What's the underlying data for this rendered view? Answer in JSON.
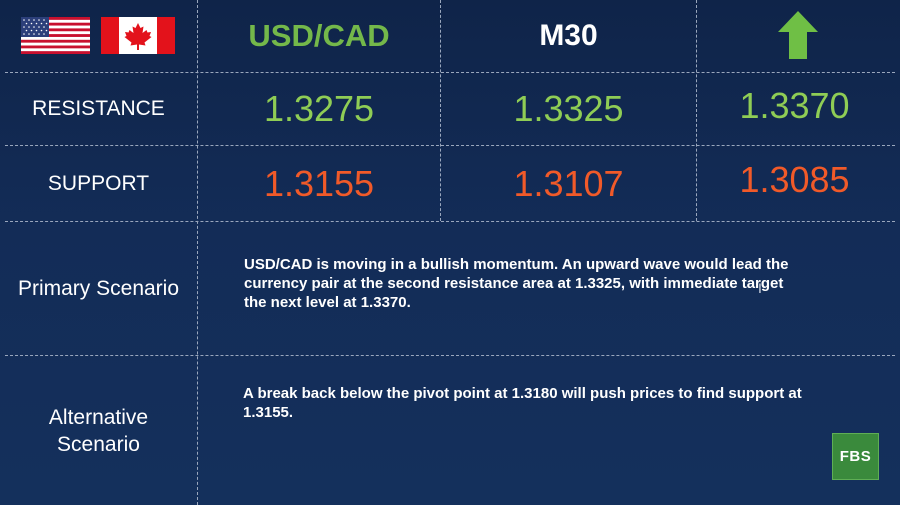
{
  "header": {
    "flags": [
      "us-flag",
      "canada-flag"
    ],
    "pair": "USD/CAD",
    "timeframe": "M30",
    "direction_icon": "arrow-up-icon"
  },
  "rows": {
    "resistance": {
      "label": "RESISTANCE",
      "values": [
        "1.3275",
        "1.3325",
        "1.3370"
      ]
    },
    "support": {
      "label": "SUPPORT",
      "values": [
        "1.3155",
        "1.3107",
        "1.3085"
      ]
    }
  },
  "scenarios": {
    "primary": {
      "label": "Primary Scenario",
      "text": "USD/CAD is moving in a bullish momentum. An upward wave would lead the currency pair at the second resistance area at 1.3325, with immediate target the next level at 1.3370."
    },
    "alternative": {
      "label_line1": "Alternative",
      "label_line2": "Scenario",
      "text": "A break back below the pivot point at 1.3180 will push prices to find support at 1.3155."
    }
  },
  "logo": {
    "text": "FBS"
  },
  "colors": {
    "background": "#132c57",
    "resistance": "#8fcd55",
    "support": "#f15a29",
    "pair": "#74b84a",
    "arrow": "#6fbf45",
    "logo": "#3a8a3c"
  }
}
